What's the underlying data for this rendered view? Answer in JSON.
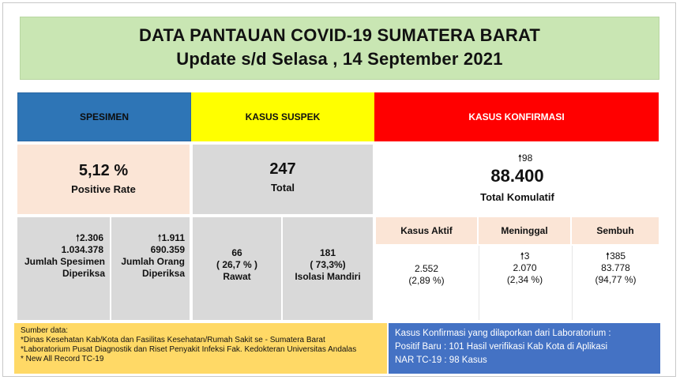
{
  "title": {
    "line1": "DATA PANTAUAN COVID-19 SUMATERA BARAT",
    "line2": "Update s/d Selasa , 14 September 2021"
  },
  "headers": {
    "spesimen": "SPESIMEN",
    "suspek": "KASUS SUSPEK",
    "konfirmasi": "KASUS KONFIRMASI"
  },
  "spesimen": {
    "positive_rate_value": "5,12 %",
    "positive_rate_label": "Positive Rate",
    "jumlah_spesimen": {
      "increase": "2.306",
      "value": "1.034.378",
      "label_line1": "Jumlah Spesimen",
      "label_line2": "Diperiksa"
    },
    "jumlah_orang": {
      "increase": "1.911",
      "value": "690.359",
      "label_line1": "Jumlah Orang",
      "label_line2": "Diperiksa"
    }
  },
  "suspek": {
    "total_value": "247",
    "total_label": "Total",
    "rawat": {
      "value": "66",
      "percent": "( 26,7 % )",
      "label": "Rawat"
    },
    "isolasi": {
      "value": "181",
      "percent": "( 73,3%)",
      "label": "Isolasi Mandiri"
    }
  },
  "konfirmasi": {
    "increase": "98",
    "total_value": "88.400",
    "total_label": "Total Komulatif",
    "aktif": {
      "label": "Kasus Aktif",
      "value": "2.552",
      "percent": "(2,89 %)"
    },
    "meninggal": {
      "label": "Meninggal",
      "increase": "3",
      "value": "2.070",
      "percent": "(2,34 %)"
    },
    "sembuh": {
      "label": "Sembuh",
      "increase": "385",
      "value": "83.778",
      "percent": "(94,77 %)"
    }
  },
  "sources": {
    "heading": "Sumber data:",
    "line1": "*Dinas Kesehatan Kab/Kota  dan Fasilitas Kesehatan/Rumah Sakit se - Sumatera Barat",
    "line2": "*Laboratorium  Pusat Diagnostik dan Riset  Penyakit Infeksi Fak. Kedokteran Universitas Andalas",
    "line3": "* New All Record TC-19"
  },
  "info": {
    "line1": "Kasus Konfirmasi yang dilaporkan dari Laboratorium :",
    "line2": "Positif Baru :  101 Hasil verifikasi Kab Kota di Aplikasi",
    "line3": "NAR TC-19 : 98 Kasus"
  },
  "icons": {
    "increase": "up-arrow-icon"
  },
  "colors": {
    "title_bg": "#c9e6b3",
    "spesimen_header": "#2e75b6",
    "suspek_header": "#ffff00",
    "konfirmasi_header": "#ff0000",
    "spesimen_bg": "#fbe5d6",
    "suspek_bg": "#d9d9d9",
    "sources_bg": "#ffd966",
    "info_bg": "#4472c4"
  }
}
